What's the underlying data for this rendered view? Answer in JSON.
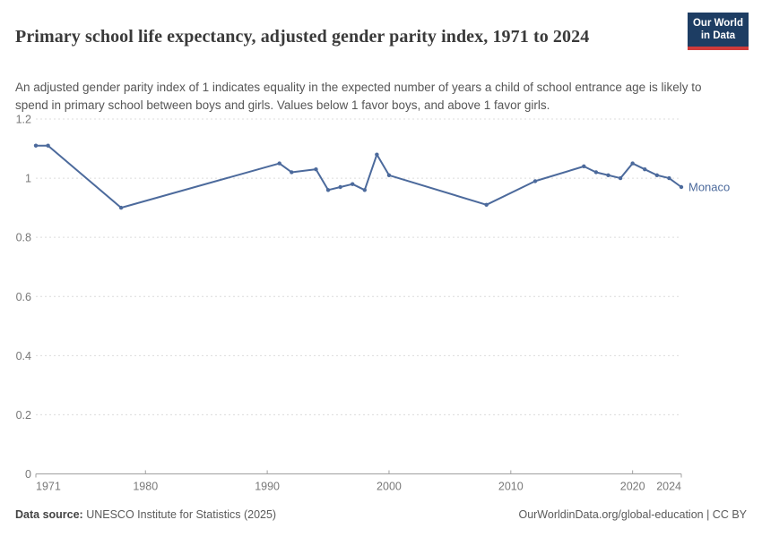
{
  "header": {
    "title": "Primary school life expectancy, adjusted gender parity index, 1971 to 2024",
    "subtitle": "An adjusted gender parity index of 1 indicates equality in the expected number of years a child of school entrance age is likely to spend in primary school between boys and girls. Values below 1 favor boys, and above 1 favor girls.",
    "logo": {
      "line1": "Our World",
      "line2": "in Data"
    }
  },
  "chart_data": {
    "type": "line",
    "title": "Primary school life expectancy, adjusted gender parity index",
    "x": {
      "ticks": [
        1971,
        1980,
        1990,
        2000,
        2010,
        2020,
        2024
      ],
      "range": [
        1971,
        2024
      ],
      "label": ""
    },
    "y": {
      "ticks": [
        0,
        0.2,
        0.4,
        0.6,
        0.8,
        1,
        1.2
      ],
      "range": [
        0,
        1.2
      ],
      "gridlines": true,
      "label": ""
    },
    "legend_position": "end-of-line-label",
    "series": [
      {
        "name": "Monaco",
        "color": "#4C6A9C",
        "points": [
          [
            1971,
            1.11
          ],
          [
            1972,
            1.11
          ],
          [
            1978,
            0.9
          ],
          [
            1991,
            1.05
          ],
          [
            1992,
            1.02
          ],
          [
            1994,
            1.03
          ],
          [
            1995,
            0.96
          ],
          [
            1996,
            0.97
          ],
          [
            1997,
            0.98
          ],
          [
            1998,
            0.96
          ],
          [
            1999,
            1.08
          ],
          [
            2000,
            1.01
          ],
          [
            2008,
            0.91
          ],
          [
            2012,
            0.99
          ],
          [
            2016,
            1.04
          ],
          [
            2017,
            1.02
          ],
          [
            2018,
            1.01
          ],
          [
            2019,
            1.0
          ],
          [
            2020,
            1.05
          ],
          [
            2021,
            1.03
          ],
          [
            2022,
            1.01
          ],
          [
            2023,
            1.0
          ],
          [
            2024,
            0.97
          ]
        ]
      }
    ]
  },
  "footer": {
    "source_label": "Data source:",
    "source_text": " UNESCO Institute for Statistics (2025)",
    "link": "OurWorldinData.org/global-education | CC BY"
  },
  "colors": {
    "line": "#4C6A9C",
    "gridline": "#dcdcdc",
    "axis": "#a0a0a0",
    "tick_label": "#787878",
    "logo_bg": "#1d3d63",
    "logo_accent": "#cf3b3b",
    "title_text": "#3a3a3a",
    "subtitle_text": "#565656"
  }
}
